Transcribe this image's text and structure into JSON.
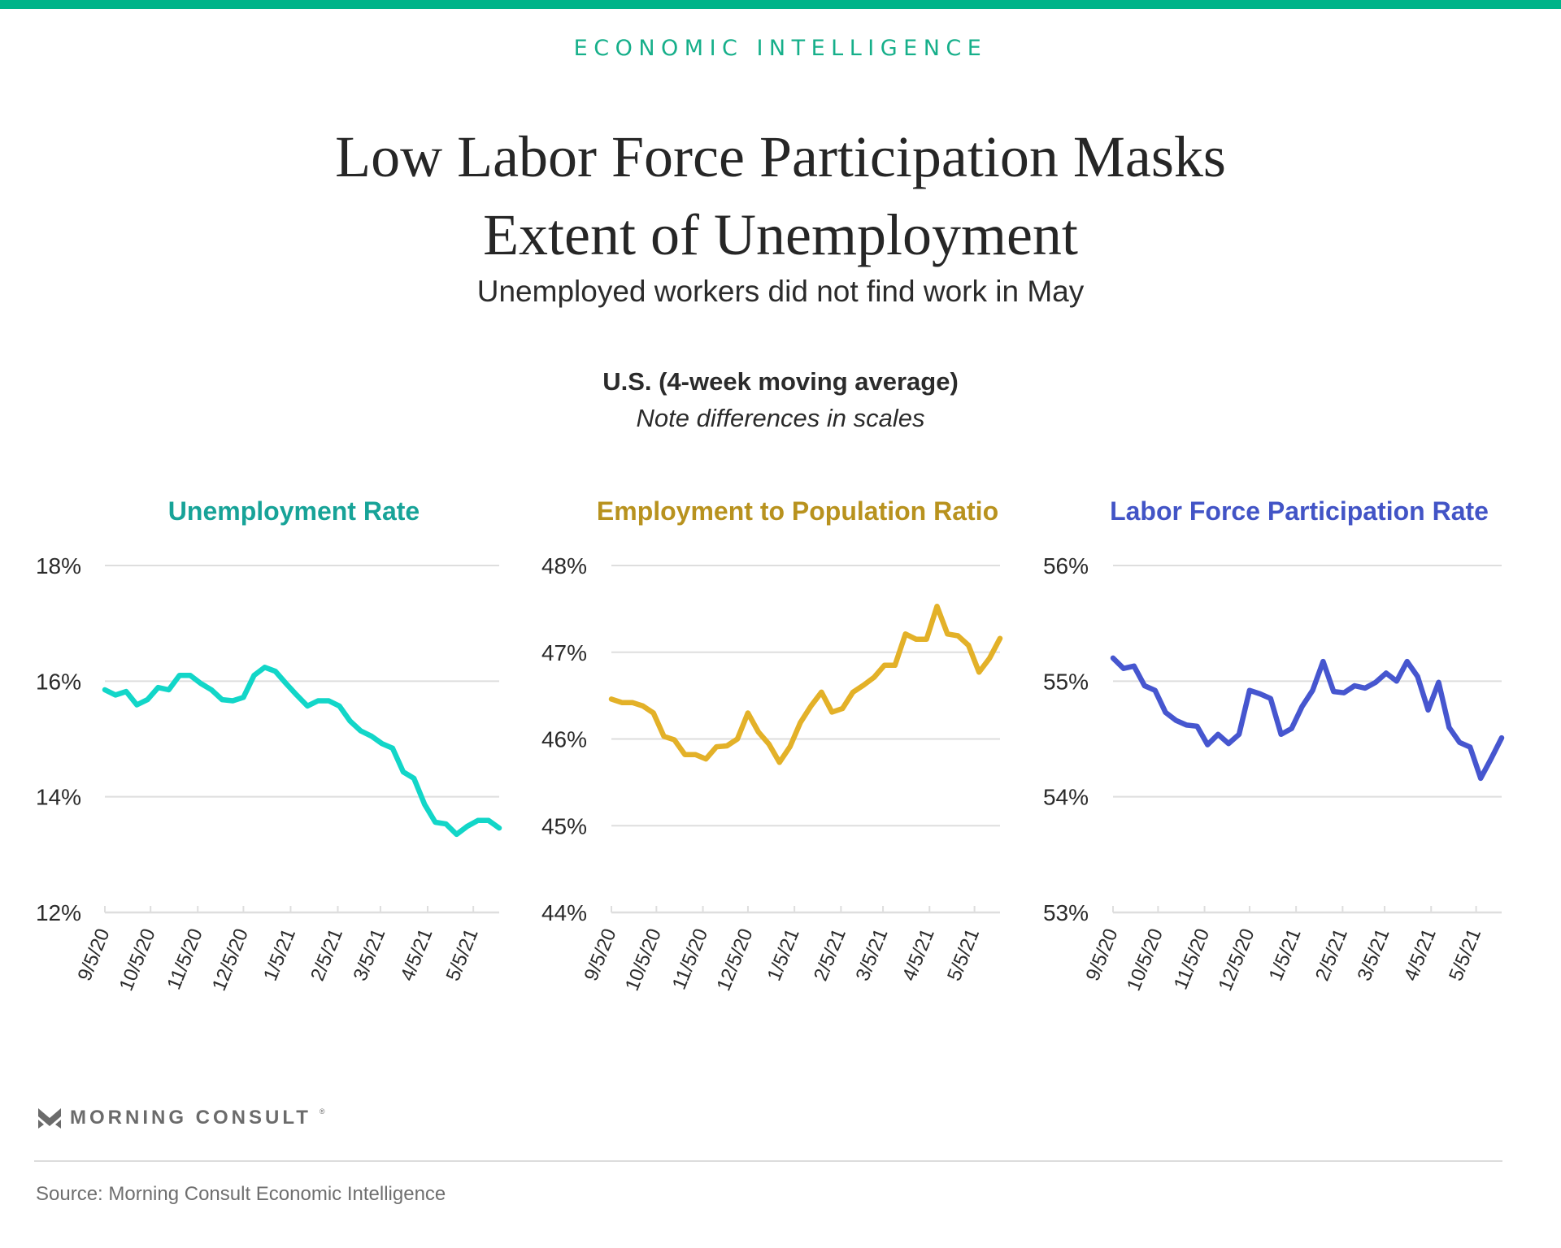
{
  "header": {
    "kicker": "ECONOMIC INTELLIGENCE",
    "title_line1": "Low Labor Force Participation Masks",
    "title_line2": "Extent of Unemployment",
    "subtitle": "Unemployed workers did not find work in May",
    "chart_heading": "U.S. (4-week moving average)",
    "chart_note": "Note differences in scales",
    "accent_color": "#00B489"
  },
  "footer": {
    "logo_icon": "morning-consult-m-chevron-icon",
    "logo_text": "MORNING CONSULT",
    "logo_reg": "®",
    "source": "Source: Morning Consult Economic Intelligence"
  },
  "chart_data": [
    {
      "type": "line",
      "title": "Unemployment Rate",
      "color": "#12D6C8",
      "title_color": "#17A398",
      "xlabel": "",
      "ylabel": "",
      "ylim": [
        12,
        18
      ],
      "yticks": [
        12,
        14,
        16,
        18
      ],
      "ytick_labels": [
        "12%",
        "14%",
        "16%",
        "18%"
      ],
      "xtick_labels": [
        "9/5/20",
        "10/5/20",
        "11/5/20",
        "12/5/20",
        "1/5/21",
        "2/5/21",
        "3/5/21",
        "4/5/21",
        "5/5/21"
      ],
      "xtick_days": [
        0,
        30,
        61,
        91,
        122,
        153,
        181,
        212,
        242
      ],
      "x_start": "9/5/20",
      "x_step_days": 7,
      "grid": true,
      "values": [
        15.85,
        15.76,
        15.82,
        15.59,
        15.68,
        15.89,
        15.85,
        16.1,
        16.1,
        15.96,
        15.85,
        15.68,
        15.66,
        15.72,
        16.1,
        16.24,
        16.17,
        15.96,
        15.76,
        15.57,
        15.66,
        15.66,
        15.57,
        15.31,
        15.14,
        15.05,
        14.92,
        14.84,
        14.43,
        14.32,
        13.87,
        13.56,
        13.53,
        13.35,
        13.49,
        13.59,
        13.59,
        13.46
      ]
    },
    {
      "type": "line",
      "title": "Employment to Population Ratio",
      "color": "#E3B128",
      "title_color": "#B8921E",
      "xlabel": "",
      "ylabel": "",
      "ylim": [
        44,
        48
      ],
      "yticks": [
        44,
        45,
        46,
        47,
        48
      ],
      "ytick_labels": [
        "44%",
        "45%",
        "46%",
        "47%",
        "48%"
      ],
      "xtick_labels": [
        "9/5/20",
        "10/5/20",
        "11/5/20",
        "12/5/20",
        "1/5/21",
        "2/5/21",
        "3/5/21",
        "4/5/21",
        "5/5/21"
      ],
      "xtick_days": [
        0,
        30,
        61,
        91,
        122,
        153,
        181,
        212,
        242
      ],
      "x_start": "9/5/20",
      "x_step_days": 7,
      "grid": true,
      "values": [
        46.46,
        46.42,
        46.42,
        46.38,
        46.3,
        46.03,
        45.99,
        45.82,
        45.82,
        45.77,
        45.91,
        45.92,
        46.0,
        46.3,
        46.08,
        45.94,
        45.73,
        45.91,
        46.19,
        46.38,
        46.54,
        46.31,
        46.35,
        46.54,
        46.62,
        46.71,
        46.85,
        46.85,
        47.21,
        47.15,
        47.15,
        47.53,
        47.21,
        47.19,
        47.08,
        46.77,
        46.93,
        47.16
      ]
    },
    {
      "type": "line",
      "title": "Labor Force Participation Rate",
      "color": "#4656CF",
      "title_color": "#4254C6",
      "xlabel": "",
      "ylabel": "",
      "ylim": [
        53,
        56
      ],
      "yticks": [
        53,
        54,
        55,
        56
      ],
      "ytick_labels": [
        "53%",
        "54%",
        "55%",
        "56%"
      ],
      "xtick_labels": [
        "9/5/20",
        "10/5/20",
        "11/5/20",
        "12/5/20",
        "1/5/21",
        "2/5/21",
        "3/5/21",
        "4/5/21",
        "5/5/21"
      ],
      "xtick_days": [
        0,
        30,
        61,
        91,
        122,
        153,
        181,
        212,
        242
      ],
      "x_start": "9/5/20",
      "x_step_days": 7,
      "grid": true,
      "values": [
        55.2,
        55.11,
        55.13,
        54.96,
        54.92,
        54.73,
        54.66,
        54.62,
        54.61,
        54.45,
        54.54,
        54.46,
        54.54,
        54.92,
        54.89,
        54.85,
        54.54,
        54.59,
        54.78,
        54.92,
        55.17,
        54.91,
        54.9,
        54.96,
        54.94,
        54.99,
        55.07,
        55.0,
        55.17,
        55.04,
        54.75,
        54.99,
        54.6,
        54.47,
        54.43,
        54.16,
        54.33,
        54.51
      ]
    }
  ]
}
